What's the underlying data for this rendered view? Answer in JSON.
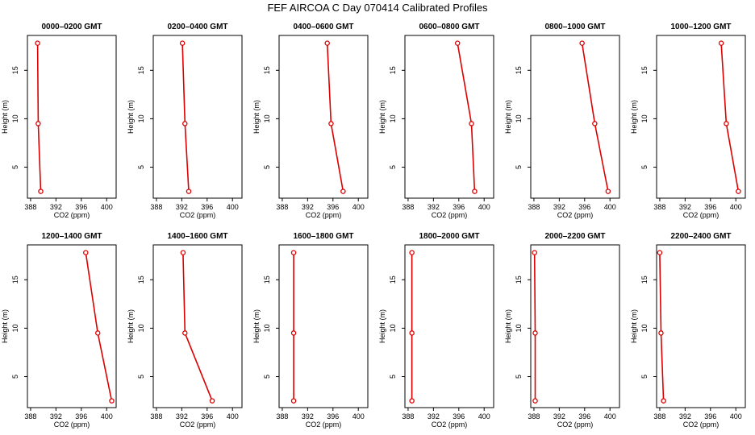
{
  "title": "FEF  AIRCOA C  Day 070414  Calibrated Profiles",
  "colors": {
    "series": "#dd0000",
    "axis": "#000000"
  },
  "chart_data": {
    "type": "line",
    "xlabel": "CO2 (ppm)",
    "ylabel": "Height (m)",
    "xlim": [
      387.5,
      401.5
    ],
    "ylim": [
      1.8,
      18.6
    ],
    "xticks": [
      388,
      392,
      396,
      400
    ],
    "yticks": [
      5,
      10,
      15
    ],
    "heights": [
      2.5,
      9.5,
      17.8
    ],
    "panels": [
      {
        "title": "0000–0200 GMT",
        "co2": [
          389.6,
          389.2,
          389.1
        ]
      },
      {
        "title": "0200–0400 GMT",
        "co2": [
          393.1,
          392.5,
          392.1
        ]
      },
      {
        "title": "0400–0600 GMT",
        "co2": [
          397.6,
          395.7,
          395.1
        ]
      },
      {
        "title": "0600–0800 GMT",
        "co2": [
          398.5,
          398.0,
          395.8
        ]
      },
      {
        "title": "0800–1000 GMT",
        "co2": [
          399.7,
          397.6,
          395.6
        ]
      },
      {
        "title": "1000–1200 GMT",
        "co2": [
          400.4,
          398.5,
          397.7
        ]
      },
      {
        "title": "1200–1400 GMT",
        "co2": [
          400.8,
          398.6,
          396.7
        ]
      },
      {
        "title": "1400–1600 GMT",
        "co2": [
          396.8,
          392.5,
          392.2
        ]
      },
      {
        "title": "1600–1800 GMT",
        "co2": [
          389.8,
          389.8,
          389.8
        ]
      },
      {
        "title": "1800–2000 GMT",
        "co2": [
          388.6,
          388.6,
          388.6
        ]
      },
      {
        "title": "2000–2200 GMT",
        "co2": [
          388.2,
          388.2,
          388.1
        ]
      },
      {
        "title": "2200–2400 GMT",
        "co2": [
          388.6,
          388.2,
          388.0
        ]
      }
    ]
  }
}
